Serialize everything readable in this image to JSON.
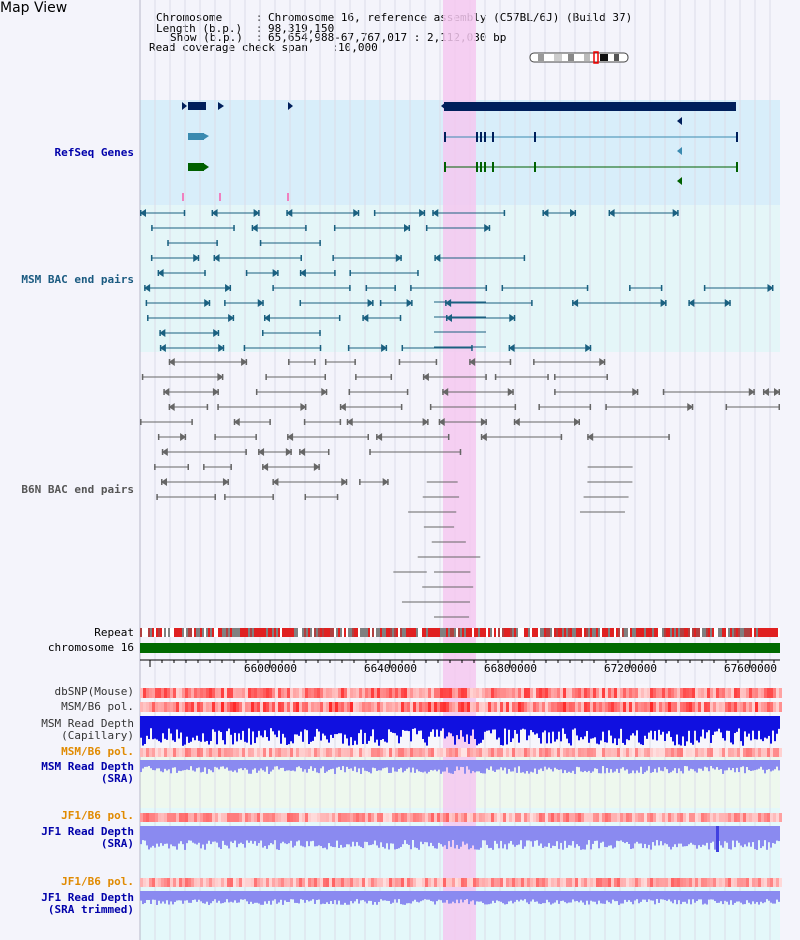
{
  "window": {
    "title": "Map View"
  },
  "info": {
    "chromosome_key": "Chromosome",
    "chromosome_val": "Chromosome 16, reference assembly (C57BL/6J) (Build 37)",
    "length_key": "Length (b.p.)",
    "length_val": "98,319,150",
    "show_key": "Show (b.p.)",
    "show_val": "65,654,988-67,767,017 : 2,112,030 bp",
    "span_key": "Read coverage check span",
    "span_val": "10,000"
  },
  "tracks": {
    "refseq": "RefSeq Genes",
    "msm_bac": "MSM BAC end pairs",
    "b6n_bac": "B6N BAC end pairs",
    "repeat": "Repeat",
    "chromosome": "chromosome 16",
    "dbsnp": "dbSNP(Mouse)",
    "msm_b6_pol_1": "MSM/B6 pol.",
    "msm_depth_cap_1": "MSM Read Depth",
    "msm_depth_cap_2": "(Capillary)",
    "msm_b6_pol_2": "MSM/B6 pol.",
    "msm_depth_sra_1": "MSM Read Depth",
    "msm_depth_sra_2": "(SRA)",
    "jf1_pol_1": "JF1/B6 pol.",
    "jf1_depth_1": "JF1 Read Depth",
    "jf1_depth_2": "(SRA)",
    "jf1_pol_2": "JF1/B6 pol.",
    "jf1_trim_1": "JF1 Read Depth",
    "jf1_trim_2": "(SRA trimmed)"
  },
  "axis": {
    "ticks": [
      "66000000",
      "66400000",
      "66800000",
      "67200000",
      "67600000"
    ]
  },
  "colors": {
    "refseq_bg": "#d8eefa",
    "msm_bg": "#e4f6f8",
    "b6n_bg": "#f4f4fb",
    "highlight": "#f4c8f0",
    "gene_dark": "#001f5b",
    "gene_teal": "#3a8ab0",
    "gene_green": "#006000",
    "msm_pair": "#1a6080",
    "b6n_pair": "#666666",
    "chrom_bar": "#006a00",
    "depth_blue": "#1010e0",
    "depth_light": "#8a8af0",
    "label_blue": "#0000aa",
    "label_orange": "#e08a00",
    "label_teal": "#1a5a80"
  }
}
